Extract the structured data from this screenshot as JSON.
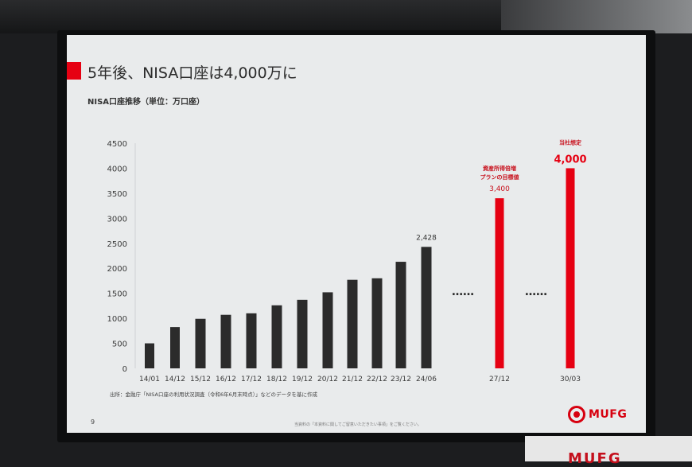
{
  "slide": {
    "title": "5年後、NISA口座は4,000万に",
    "subtitle": "NISA口座推移（単位：万口座）",
    "source": "出所：金融庁「NISA口座の利用状況調査（令和6年6月末時点）」などのデータを基に作成",
    "page_number": "9",
    "footer_note": "当資料の「本資料に関してご留意いただきたい事項」をご覧ください。",
    "logo_text": "MUFG",
    "bottom_partial_text": "MUFG"
  },
  "colors": {
    "accent": "#e60012",
    "bar_actual": "#2b2b2b",
    "bar_target": "#e60012",
    "screen_bg": "#e9ebec"
  },
  "chart_data": {
    "type": "bar",
    "title": "NISA口座推移（単位：万口座）",
    "ylim": [
      0,
      4500
    ],
    "yticks": [
      0,
      500,
      1000,
      1500,
      2000,
      2500,
      3000,
      3500,
      4000,
      4500
    ],
    "grid": false,
    "categories": [
      "14/01",
      "14/12",
      "15/12",
      "16/12",
      "17/12",
      "18/12",
      "19/12",
      "20/12",
      "21/12",
      "22/12",
      "23/12",
      "24/06",
      "27/12",
      "30/03"
    ],
    "values": [
      500,
      825,
      990,
      1070,
      1100,
      1260,
      1370,
      1520,
      1770,
      1800,
      2130,
      2428,
      3400,
      4000
    ],
    "bar_colors": [
      "#2b2b2b",
      "#2b2b2b",
      "#2b2b2b",
      "#2b2b2b",
      "#2b2b2b",
      "#2b2b2b",
      "#2b2b2b",
      "#2b2b2b",
      "#2b2b2b",
      "#2b2b2b",
      "#2b2b2b",
      "#2b2b2b",
      "#e60012",
      "#e60012"
    ],
    "value_labels": [
      {
        "category": "24/06",
        "text": "2,428",
        "color": "#333333"
      },
      {
        "category": "27/12",
        "text": "3,400",
        "color": "#c8101c"
      },
      {
        "category": "30/03",
        "text": "4,000",
        "color": "#e60012"
      }
    ],
    "annotations": [
      {
        "category": "27/12",
        "lines": [
          "資産所得倍増",
          "プランの目標値"
        ],
        "color": "#c8101c"
      },
      {
        "category": "30/03",
        "lines": [
          "当社想定"
        ],
        "color": "#c8101c"
      }
    ],
    "breaks": [
      {
        "after": "24/06",
        "text": "……"
      },
      {
        "after": "27/12",
        "text": "……"
      }
    ]
  }
}
